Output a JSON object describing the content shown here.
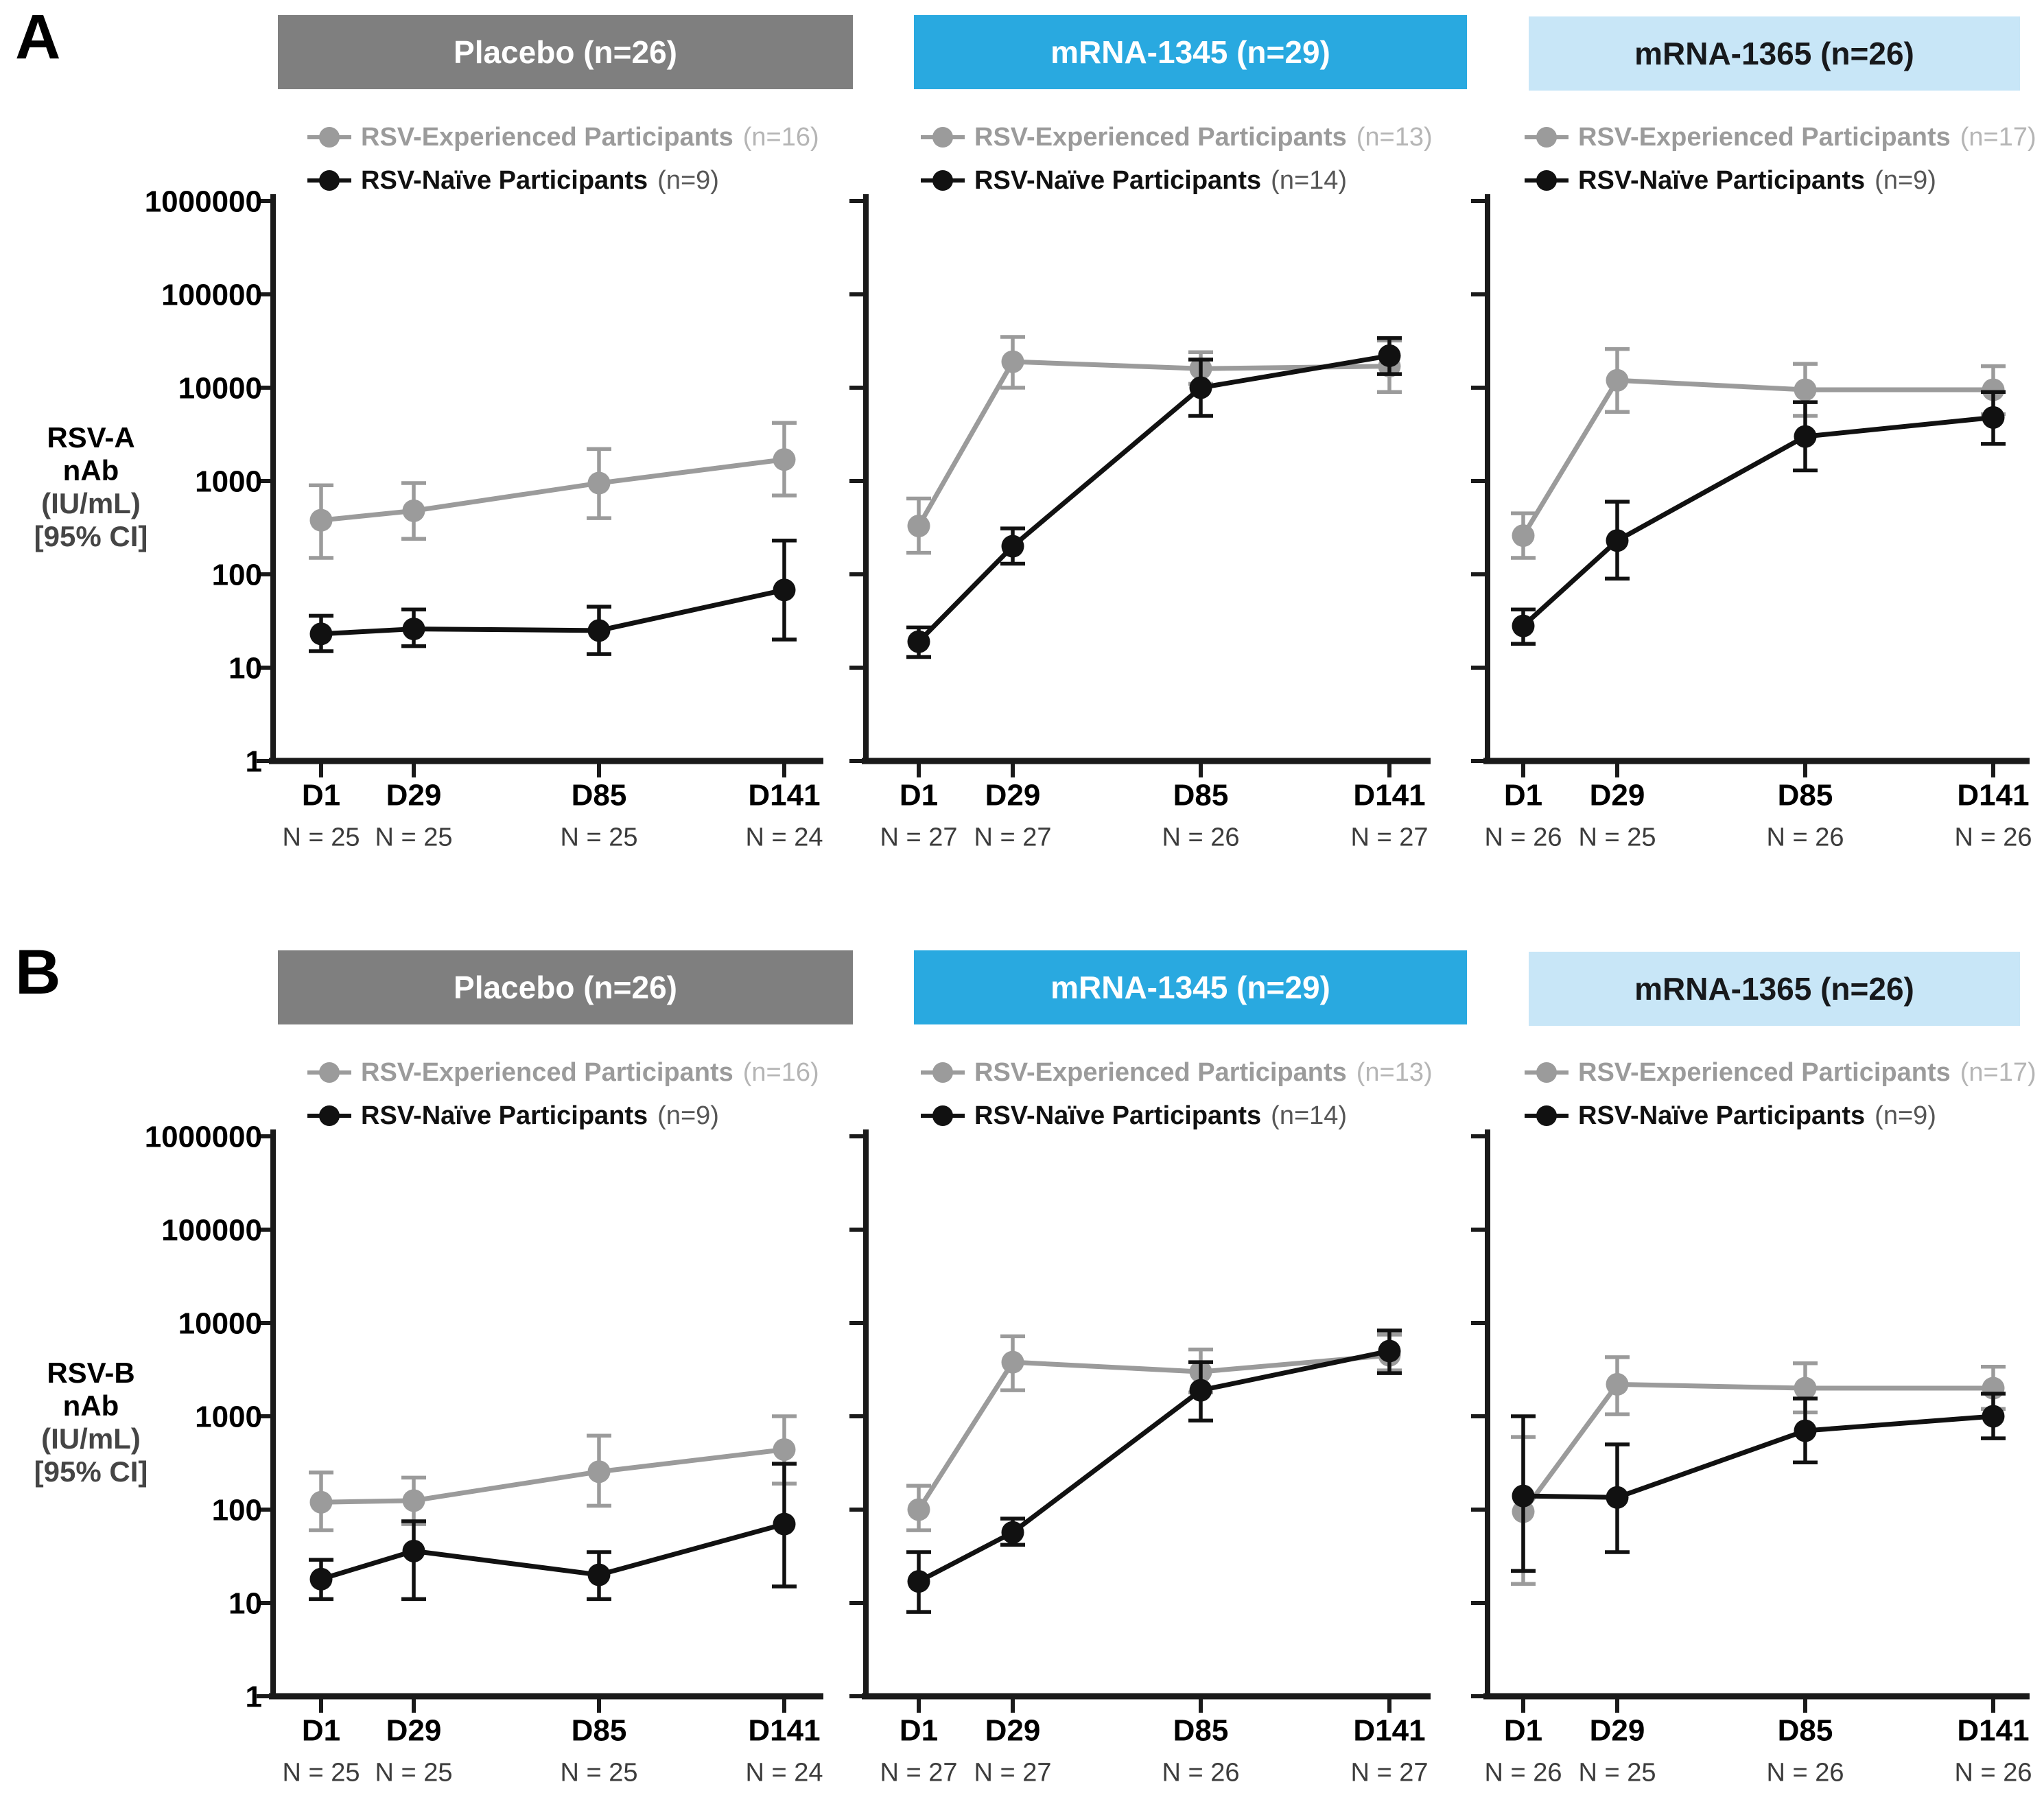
{
  "colors": {
    "experienced_series": "#9b9b9b",
    "naive_series": "#111111",
    "placebo_header_bg": "#7f7f7f",
    "mrna1345_header_bg": "#29a9e0",
    "mrna1365_header_bg": "#c8e6f7",
    "header_text_light": "#ffffff",
    "header_text_dark": "#17191c",
    "experienced_count_text": "#b5b5b5",
    "naive_count_text": "#565656",
    "n_label_text": "#3c3c3c",
    "axis": "#1a1a1a"
  },
  "y_axis": {
    "scale": "log",
    "tick_labels": [
      "1000000",
      "100000",
      "10000",
      "1000",
      "100",
      "10",
      "1"
    ]
  },
  "panels": [
    {
      "label": "A",
      "y_axis_label_lines": [
        "RSV-A",
        "nAb",
        "(IU/mL)",
        "[95% CI]"
      ],
      "groups": [
        {
          "id": "placebo",
          "header_label": "Placebo (n=26)",
          "legend": [
            {
              "label": "RSV-Experienced Participants",
              "count": "(n=16)",
              "series": "experienced"
            },
            {
              "label": "RSV-Naïve Participants",
              "count": "(n=9)",
              "series": "naive"
            }
          ],
          "chart_data": {
            "type": "line",
            "yscale": "log",
            "ylim": [
              1,
              1000000
            ],
            "x_days": [
              1,
              29,
              85,
              141
            ],
            "x_tick_labels": [
              "D1",
              "D29",
              "D85",
              "D141"
            ],
            "n_labels": [
              "N = 25",
              "N = 25",
              "N = 25",
              "N = 24"
            ],
            "series": [
              {
                "name": "RSV-Experienced Participants",
                "color": "experienced",
                "values": [
                  380,
                  480,
                  950,
                  1700
                ],
                "ci_low": [
                  150,
                  240,
                  400,
                  700
                ],
                "ci_high": [
                  900,
                  950,
                  2200,
                  4200
                ]
              },
              {
                "name": "RSV-Naïve Participants",
                "color": "naive",
                "values": [
                  23,
                  26,
                  25,
                  68
                ],
                "ci_low": [
                  15,
                  17,
                  14,
                  20
                ],
                "ci_high": [
                  36,
                  42,
                  45,
                  230
                ]
              }
            ]
          }
        },
        {
          "id": "mrna1345",
          "header_label": "mRNA-1345 (n=29)",
          "legend": [
            {
              "label": "RSV-Experienced Participants",
              "count": "(n=13)",
              "series": "experienced"
            },
            {
              "label": "RSV-Naïve Participants",
              "count": "(n=14)",
              "series": "naive"
            }
          ],
          "chart_data": {
            "type": "line",
            "yscale": "log",
            "ylim": [
              1,
              1000000
            ],
            "x_days": [
              1,
              29,
              85,
              141
            ],
            "x_tick_labels": [
              "D1",
              "D29",
              "D85",
              "D141"
            ],
            "n_labels": [
              "N = 27",
              "N = 27",
              "N = 26",
              "N = 27"
            ],
            "series": [
              {
                "name": "RSV-Experienced Participants",
                "color": "experienced",
                "values": [
                  330,
                  19000,
                  16000,
                  17000
                ],
                "ci_low": [
                  170,
                  10000,
                  11000,
                  9000
                ],
                "ci_high": [
                  650,
                  35000,
                  24000,
                  32000
                ]
              },
              {
                "name": "RSV-Naïve Participants",
                "color": "naive",
                "values": [
                  19,
                  200,
                  10000,
                  22000
                ],
                "ci_low": [
                  13,
                  130,
                  5000,
                  14000
                ],
                "ci_high": [
                  27,
                  310,
                  20000,
                  34000
                ]
              }
            ]
          }
        },
        {
          "id": "mrna1365",
          "header_label": "mRNA-1365 (n=26)",
          "legend": [
            {
              "label": "RSV-Experienced Participants",
              "count": "(n=17)",
              "series": "experienced"
            },
            {
              "label": "RSV-Naïve Participants",
              "count": "(n=9)",
              "series": "naive"
            }
          ],
          "chart_data": {
            "type": "line",
            "yscale": "log",
            "ylim": [
              1,
              1000000
            ],
            "x_days": [
              1,
              29,
              85,
              141
            ],
            "x_tick_labels": [
              "D1",
              "D29",
              "D85",
              "D141"
            ],
            "n_labels": [
              "N = 26",
              "N = 25",
              "N = 26",
              "N = 26"
            ],
            "series": [
              {
                "name": "RSV-Experienced Participants",
                "color": "experienced",
                "values": [
                  260,
                  12000,
                  9500,
                  9500
                ],
                "ci_low": [
                  150,
                  5500,
                  5000,
                  5200
                ],
                "ci_high": [
                  450,
                  26000,
                  18000,
                  17000
                ]
              },
              {
                "name": "RSV-Naïve Participants",
                "color": "naive",
                "values": [
                  28,
                  230,
                  3000,
                  4800
                ],
                "ci_low": [
                  18,
                  90,
                  1300,
                  2500
                ],
                "ci_high": [
                  42,
                  600,
                  7000,
                  9000
                ]
              }
            ]
          }
        }
      ]
    },
    {
      "label": "B",
      "y_axis_label_lines": [
        "RSV-B",
        "nAb",
        "(IU/mL)",
        "[95% CI]"
      ],
      "groups": [
        {
          "id": "placebo",
          "header_label": "Placebo (n=26)",
          "legend": [
            {
              "label": "RSV-Experienced Participants",
              "count": "(n=16)",
              "series": "experienced"
            },
            {
              "label": "RSV-Naïve Participants",
              "count": "(n=9)",
              "series": "naive"
            }
          ],
          "chart_data": {
            "type": "line",
            "yscale": "log",
            "ylim": [
              1,
              1000000
            ],
            "x_days": [
              1,
              29,
              85,
              141
            ],
            "x_tick_labels": [
              "D1",
              "D29",
              "D85",
              "D141"
            ],
            "n_labels": [
              "N = 25",
              "N = 25",
              "N = 25",
              "N = 24"
            ],
            "series": [
              {
                "name": "RSV-Experienced Participants",
                "color": "experienced",
                "values": [
                  120,
                  125,
                  255,
                  440
                ],
                "ci_low": [
                  60,
                  70,
                  110,
                  190
                ],
                "ci_high": [
                  250,
                  220,
                  620,
                  1000
                ]
              },
              {
                "name": "RSV-Naïve Participants",
                "color": "naive",
                "values": [
                  18,
                  36,
                  20,
                  70
                ],
                "ci_low": [
                  11,
                  11,
                  11,
                  15
                ],
                "ci_high": [
                  29,
                  75,
                  35,
                  310
                ]
              }
            ]
          }
        },
        {
          "id": "mrna1345",
          "header_label": "mRNA-1345 (n=29)",
          "legend": [
            {
              "label": "RSV-Experienced Participants",
              "count": "(n=13)",
              "series": "experienced"
            },
            {
              "label": "RSV-Naïve Participants",
              "count": "(n=14)",
              "series": "naive"
            }
          ],
          "chart_data": {
            "type": "line",
            "yscale": "log",
            "ylim": [
              1,
              1000000
            ],
            "x_days": [
              1,
              29,
              85,
              141
            ],
            "x_tick_labels": [
              "D1",
              "D29",
              "D85",
              "D141"
            ],
            "n_labels": [
              "N = 27",
              "N = 27",
              "N = 26",
              "N = 27"
            ],
            "series": [
              {
                "name": "RSV-Experienced Participants",
                "color": "experienced",
                "values": [
                  100,
                  3800,
                  3000,
                  4500
                ],
                "ci_low": [
                  60,
                  1900,
                  1800,
                  3100
                ],
                "ci_high": [
                  180,
                  7200,
                  5200,
                  7500
                ]
              },
              {
                "name": "RSV-Naïve Participants",
                "color": "naive",
                "values": [
                  17,
                  57,
                  1900,
                  5000
                ],
                "ci_low": [
                  8,
                  42,
                  900,
                  2900
                ],
                "ci_high": [
                  35,
                  80,
                  3800,
                  8300
                ]
              }
            ]
          }
        },
        {
          "id": "mrna1365",
          "header_label": "mRNA-1365 (n=26)",
          "legend": [
            {
              "label": "RSV-Experienced Participants",
              "count": "(n=17)",
              "series": "experienced"
            },
            {
              "label": "RSV-Naïve Participants",
              "count": "(n=9)",
              "series": "naive"
            }
          ],
          "chart_data": {
            "type": "line",
            "yscale": "log",
            "ylim": [
              1,
              1000000
            ],
            "x_days": [
              1,
              29,
              85,
              141
            ],
            "x_tick_labels": [
              "D1",
              "D29",
              "D85",
              "D141"
            ],
            "n_labels": [
              "N = 26",
              "N = 25",
              "N = 26",
              "N = 26"
            ],
            "series": [
              {
                "name": "RSV-Experienced Participants",
                "color": "experienced",
                "values": [
                  95,
                  2200,
                  2000,
                  2000
                ],
                "ci_low": [
                  16,
                  1050,
                  1100,
                  1200
                ],
                "ci_high": [
                  600,
                  4300,
                  3700,
                  3400
                ]
              },
              {
                "name": "RSV-Naïve Participants",
                "color": "naive",
                "values": [
                  140,
                  135,
                  700,
                  1000
                ],
                "ci_low": [
                  22,
                  35,
                  320,
                  580
                ],
                "ci_high": [
                  1000,
                  500,
                  1550,
                  1750
                ]
              }
            ]
          }
        }
      ]
    }
  ]
}
